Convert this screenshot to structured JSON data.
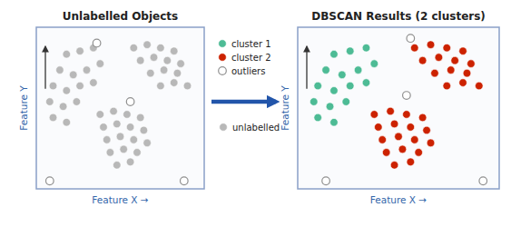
{
  "chart_data": [
    {
      "type": "scatter",
      "title": "Unlabelled Objects",
      "xlabel": "Feature X →",
      "ylabel": "Feature Y",
      "xlim": [
        0,
        10
      ],
      "ylim": [
        0.3,
        10.5
      ],
      "tick_labels": false,
      "legend": "right",
      "series": [
        {
          "name": "unlabelled",
          "color": "#b8b8b8",
          "marker": "circle",
          "x": [
            1.8,
            2.6,
            3.4,
            1.4,
            2.2,
            3.0,
            3.8,
            1.0,
            1.8,
            2.6,
            3.4,
            0.8,
            1.6,
            2.4,
            1.0,
            1.8,
            5.8,
            6.6,
            7.4,
            8.2,
            6.2,
            7.0,
            7.8,
            8.6,
            6.8,
            7.6,
            8.4,
            7.4,
            8.2,
            9.0,
            3.8,
            4.6,
            5.4,
            6.2,
            4.0,
            4.8,
            5.6,
            6.4,
            4.2,
            5.0,
            5.8,
            6.6,
            4.4,
            5.2,
            6.0,
            4.8,
            5.6
          ],
          "values": [
            8.8,
            9.0,
            9.2,
            7.8,
            7.5,
            7.8,
            8.2,
            6.8,
            6.5,
            6.8,
            7.0,
            5.8,
            5.5,
            5.8,
            4.8,
            4.5,
            9.2,
            9.4,
            9.2,
            9.0,
            8.4,
            8.6,
            8.4,
            8.2,
            7.6,
            7.8,
            7.6,
            6.8,
            7.0,
            6.8,
            5.0,
            5.2,
            5.0,
            4.8,
            4.2,
            4.4,
            4.2,
            4.0,
            3.4,
            3.6,
            3.4,
            3.2,
            2.6,
            2.8,
            2.6,
            1.8,
            2.0
          ]
        },
        {
          "color": "#909090",
          "marker": "open",
          "x": [
            3.6,
            5.6,
            0.8,
            8.8
          ],
          "values": [
            9.5,
            5.8,
            0.8,
            0.8
          ]
        }
      ]
    },
    {
      "type": "scatter",
      "title": "DBSCAN Results (2 clusters)",
      "xlabel": "Feature X →",
      "ylabel": "Feature Y",
      "xlim": [
        0,
        10
      ],
      "ylim": [
        0.3,
        10.5
      ],
      "tick_labels": false,
      "legend": "left",
      "series": [
        {
          "name": "cluster 1",
          "color": "#4dbb95",
          "marker": "circle",
          "x": [
            1.8,
            2.6,
            3.4,
            1.4,
            2.2,
            3.0,
            3.8,
            1.0,
            1.8,
            2.6,
            3.4,
            0.8,
            1.6,
            2.4,
            1.0,
            1.8
          ],
          "values": [
            8.8,
            9.0,
            9.2,
            7.8,
            7.5,
            7.8,
            8.2,
            6.8,
            6.5,
            6.8,
            7.0,
            5.8,
            5.5,
            5.8,
            4.8,
            4.5
          ]
        },
        {
          "name": "cluster 2",
          "color": "#cc2200",
          "marker": "circle",
          "x": [
            5.8,
            6.6,
            7.4,
            8.2,
            6.2,
            7.0,
            7.8,
            8.6,
            6.8,
            7.6,
            8.4,
            7.4,
            8.2,
            9.0,
            3.8,
            4.6,
            5.4,
            6.2,
            4.0,
            4.8,
            5.6,
            6.4,
            4.2,
            5.0,
            5.8,
            6.6,
            4.4,
            5.2,
            6.0,
            4.8,
            5.6
          ],
          "values": [
            9.2,
            9.4,
            9.2,
            9.0,
            8.4,
            8.6,
            8.4,
            8.2,
            7.6,
            7.8,
            7.6,
            6.8,
            7.0,
            6.8,
            5.0,
            5.2,
            5.0,
            4.8,
            4.2,
            4.4,
            4.2,
            4.0,
            3.4,
            3.6,
            3.4,
            3.2,
            2.6,
            2.8,
            2.6,
            1.8,
            2.0
          ]
        },
        {
          "name": "outliers",
          "color": "#909090",
          "marker": "open",
          "x": [
            5.6,
            5.4,
            1.4,
            9.2
          ],
          "values": [
            9.8,
            6.2,
            0.8,
            0.8
          ]
        }
      ]
    }
  ]
}
